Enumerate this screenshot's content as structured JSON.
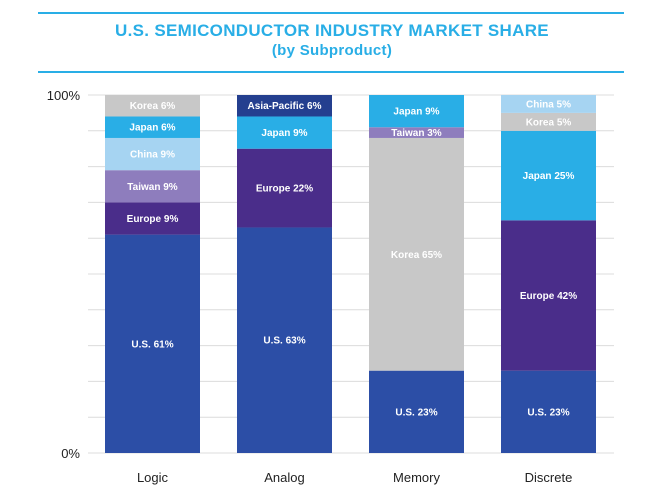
{
  "header": {
    "title": "U.S. SEMICONDUCTOR INDUSTRY MARKET SHARE",
    "subtitle": "(by Subproduct)"
  },
  "chart_data": {
    "type": "bar",
    "stacked": true,
    "categories": [
      "Logic",
      "Analog",
      "Memory",
      "Discrete"
    ],
    "ylim": [
      0,
      100
    ],
    "y_ticks": [
      "0%",
      "100%"
    ],
    "grid": true,
    "segments": [
      [
        {
          "label": "U.S. 61%",
          "value": 61,
          "color": "#2c4ea6"
        },
        {
          "label": "Europe 9%",
          "value": 9,
          "color": "#4a2d8a"
        },
        {
          "label": "Taiwan 9%",
          "value": 9,
          "color": "#8e7dbd"
        },
        {
          "label": "China 9%",
          "value": 9,
          "color": "#a6d4f2"
        },
        {
          "label": "Japan 6%",
          "value": 6,
          "color": "#29aee6"
        },
        {
          "label": "Korea 6%",
          "value": 6,
          "color": "#c8c8c8"
        }
      ],
      [
        {
          "label": "U.S. 63%",
          "value": 63,
          "color": "#2c4ea6"
        },
        {
          "label": "Europe 22%",
          "value": 22,
          "color": "#4a2d8a"
        },
        {
          "label": "Japan 9%",
          "value": 9,
          "color": "#29aee6"
        },
        {
          "label": "Asia-Pacific 6%",
          "value": 6,
          "color": "#243f8f"
        }
      ],
      [
        {
          "label": "U.S. 23%",
          "value": 23,
          "color": "#2c4ea6"
        },
        {
          "label": "Korea 65%",
          "value": 65,
          "color": "#c8c8c8"
        },
        {
          "label": "Taiwan 3%",
          "value": 3,
          "color": "#8e7dbd"
        },
        {
          "label": "Japan 9%",
          "value": 9,
          "color": "#29aee6"
        }
      ],
      [
        {
          "label": "U.S. 23%",
          "value": 23,
          "color": "#2c4ea6"
        },
        {
          "label": "Europe 42%",
          "value": 42,
          "color": "#4a2d8a"
        },
        {
          "label": "Japan 25%",
          "value": 25,
          "color": "#29aee6"
        },
        {
          "label": "Korea 5%",
          "value": 5,
          "color": "#c8c8c8"
        },
        {
          "label": "China 5%",
          "value": 5,
          "color": "#a6d4f2"
        }
      ]
    ]
  }
}
